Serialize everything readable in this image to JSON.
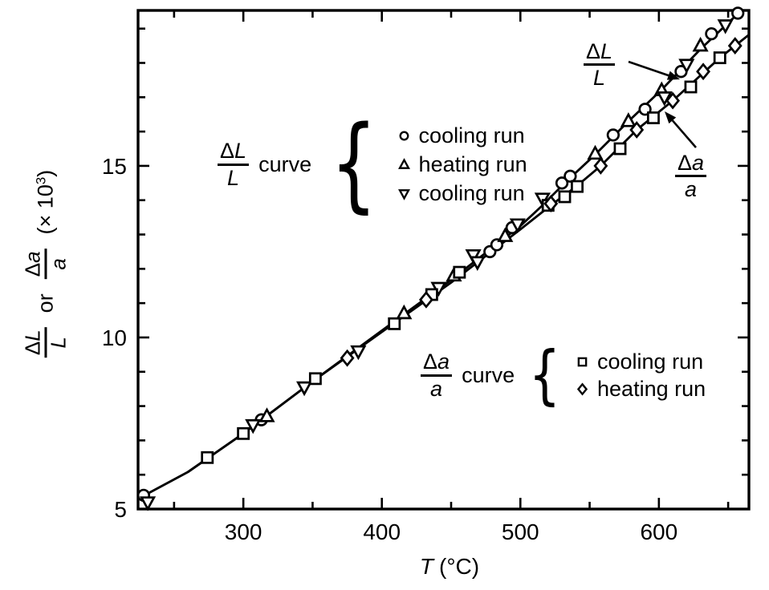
{
  "y_axis_label": {
    "frac1": {
      "delta": "Δ",
      "letter": "L",
      "den": "L"
    },
    "or_word": "or",
    "frac2": {
      "delta": "Δ",
      "letter": "a",
      "den": "a"
    },
    "scale_prefix": "(× 10",
    "scale_exp": "3",
    "scale_suffix": ")"
  },
  "x_axis_label": {
    "symbol": "T",
    "unit": "(°C)"
  },
  "legend_dL": {
    "frac": {
      "delta": "Δ",
      "letter": "L",
      "den": "L"
    },
    "curve_word": "curve",
    "brace": "{",
    "items": [
      {
        "marker": "circle",
        "label": "cooling run"
      },
      {
        "marker": "triangle-up",
        "label": "heating run"
      },
      {
        "marker": "triangle-down",
        "label": "cooling run"
      }
    ]
  },
  "legend_da": {
    "frac": {
      "delta": "Δ",
      "letter": "a",
      "den": "a"
    },
    "curve_word": "curve",
    "brace": "{",
    "items": [
      {
        "marker": "square",
        "label": "cooling run"
      },
      {
        "marker": "diamond",
        "label": "heating run"
      }
    ]
  },
  "annotation_dL": {
    "delta": "Δ",
    "letter": "L",
    "den": "L"
  },
  "annotation_da": {
    "delta": "Δ",
    "letter": "a",
    "den": "a"
  },
  "chart_data": {
    "type": "scatter",
    "title": "",
    "xlabel": "T (°C)",
    "ylabel": "ΔL/L or Δa/a (× 10³)",
    "xlim": [
      224,
      665
    ],
    "ylim": [
      5,
      19.53
    ],
    "grid": false,
    "x_major_ticks": [
      300,
      400,
      500,
      600
    ],
    "x_minor_ticks": [
      250,
      350,
      450,
      550,
      650
    ],
    "y_major_ticks": [
      5,
      10,
      15
    ],
    "y_minor_ticks": [
      6,
      7,
      8,
      9,
      11,
      12,
      13,
      14,
      16,
      17,
      18,
      19
    ],
    "lines": [
      {
        "name": "ΔL/L curve",
        "points": [
          [
            224,
            5.3
          ],
          [
            260,
            6.08
          ],
          [
            300,
            7.2
          ],
          [
            350,
            8.72
          ],
          [
            400,
            10.2
          ],
          [
            450,
            11.68
          ],
          [
            500,
            13.25
          ],
          [
            516,
            13.85
          ],
          [
            532,
            14.5
          ],
          [
            554,
            15.33
          ],
          [
            578,
            16.3
          ],
          [
            602,
            17.22
          ],
          [
            630,
            18.4
          ],
          [
            660,
            19.55
          ]
        ]
      },
      {
        "name": "Δa/a curve",
        "points": [
          [
            224,
            5.3
          ],
          [
            260,
            6.08
          ],
          [
            300,
            7.2
          ],
          [
            350,
            8.72
          ],
          [
            400,
            10.16
          ],
          [
            450,
            11.6
          ],
          [
            500,
            13.15
          ],
          [
            522,
            13.85
          ],
          [
            541,
            14.42
          ],
          [
            558,
            15.0
          ],
          [
            584,
            16.05
          ],
          [
            610,
            16.9
          ],
          [
            644,
            18.15
          ],
          [
            665,
            18.82
          ]
        ]
      }
    ],
    "series": [
      {
        "curve": "ΔL/L",
        "run": "cooling run",
        "marker": "circle",
        "points": [
          [
            228,
            5.4
          ],
          [
            313,
            7.6
          ],
          [
            478,
            12.5
          ],
          [
            483,
            12.7
          ],
          [
            494,
            13.2
          ],
          [
            530,
            14.5
          ],
          [
            536,
            14.7
          ],
          [
            567,
            15.9
          ],
          [
            590,
            16.65
          ],
          [
            616,
            17.75
          ],
          [
            638,
            18.85
          ],
          [
            657,
            19.45
          ]
        ]
      },
      {
        "curve": "ΔL/L",
        "run": "heating run",
        "marker": "triangle-up",
        "points": [
          [
            317,
            7.7
          ],
          [
            416,
            10.7
          ],
          [
            452,
            11.8
          ],
          [
            489,
            12.95
          ],
          [
            554,
            15.35
          ],
          [
            578,
            16.3
          ],
          [
            602,
            17.2
          ],
          [
            630,
            18.5
          ]
        ]
      },
      {
        "curve": "ΔL/L",
        "run": "cooling run",
        "marker": "triangle-down",
        "points": [
          [
            231,
            5.2
          ],
          [
            307,
            7.45
          ],
          [
            344,
            8.55
          ],
          [
            383,
            9.6
          ],
          [
            441,
            11.45
          ],
          [
            466,
            12.4
          ],
          [
            469,
            12.2
          ],
          [
            498,
            13.3
          ],
          [
            516,
            14.05
          ],
          [
            604,
            17.0
          ],
          [
            620,
            17.95
          ],
          [
            648,
            19.1
          ]
        ]
      },
      {
        "curve": "Δa/a",
        "run": "cooling run",
        "marker": "square",
        "points": [
          [
            274,
            6.5
          ],
          [
            300,
            7.2
          ],
          [
            352,
            8.8
          ],
          [
            409,
            10.4
          ],
          [
            436,
            11.25
          ],
          [
            456,
            11.9
          ],
          [
            520,
            13.85
          ],
          [
            532,
            14.1
          ],
          [
            541,
            14.4
          ],
          [
            572,
            15.5
          ],
          [
            596,
            16.4
          ],
          [
            623,
            17.3
          ],
          [
            644,
            18.15
          ]
        ]
      },
      {
        "curve": "Δa/a",
        "run": "heating run",
        "marker": "diamond",
        "points": [
          [
            375,
            9.4
          ],
          [
            432,
            11.1
          ],
          [
            522,
            13.9
          ],
          [
            558,
            15.0
          ],
          [
            584,
            16.05
          ],
          [
            610,
            16.9
          ],
          [
            632,
            17.75
          ],
          [
            655,
            18.5
          ]
        ]
      }
    ],
    "colors": {
      "foreground": "#000000",
      "background": "#ffffff",
      "marker_fill": "#ffffff"
    }
  }
}
